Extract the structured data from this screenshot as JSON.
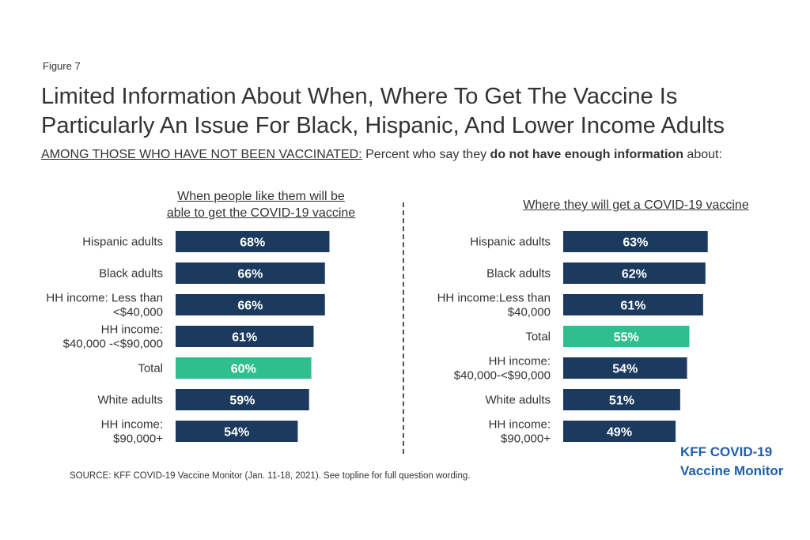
{
  "figure_label": "Figure 7",
  "title_line1": "Limited Information About When, Where To Get The Vaccine Is",
  "title_line2": "Particularly An Issue For Black, Hispanic, And Lower Income Adults",
  "subtitle": {
    "underlined": "AMONG THOSE WHO HAVE NOT BEEN VACCINATED:",
    "part1": " Percent who say they ",
    "bold": "do not have enough information",
    "part2": " about:"
  },
  "colors": {
    "bar": "#1b3a5e",
    "highlight": "#2fbf8f",
    "label_text": "#ffffff"
  },
  "chart_data": [
    {
      "type": "bar",
      "orientation": "horizontal",
      "header_line1": "When people like them will be",
      "header_line2": "able to get the COVID-19 vaccine",
      "categories": [
        [
          "Hispanic adults"
        ],
        [
          "Black adults"
        ],
        [
          "HH income: Less than",
          "<$40,000"
        ],
        [
          "HH income:",
          "$40,000 -<$90,000"
        ],
        [
          "Total"
        ],
        [
          "White adults"
        ],
        [
          "HH income:",
          "$90,000+"
        ]
      ],
      "values": [
        68,
        66,
        66,
        61,
        60,
        59,
        54
      ],
      "data_labels": [
        "68%",
        "66%",
        "66%",
        "61%",
        "60%",
        "59%",
        "54%"
      ],
      "highlight_index": 4
    },
    {
      "type": "bar",
      "orientation": "horizontal",
      "header_line1": "Where they will get a COVID-19 vaccine",
      "header_line2": "",
      "categories": [
        [
          "Hispanic adults"
        ],
        [
          "Black adults"
        ],
        [
          "HH income:Less than",
          "$40,000"
        ],
        [
          "Total"
        ],
        [
          "HH income:",
          "$40,000-<$90,000"
        ],
        [
          "White adults"
        ],
        [
          "HH income:",
          "$90,000+"
        ]
      ],
      "values": [
        63,
        62,
        61,
        55,
        54,
        51,
        49
      ],
      "data_labels": [
        "63%",
        "62%",
        "61%",
        "55%",
        "54%",
        "51%",
        "49%"
      ],
      "highlight_index": 3
    }
  ],
  "source": "SOURCE: KFF COVID-19 Vaccine Monitor (Jan. 11-18, 2021). See topline for full question wording.",
  "brand_line1": "KFF COVID-19",
  "brand_line2": "Vaccine Monitor"
}
